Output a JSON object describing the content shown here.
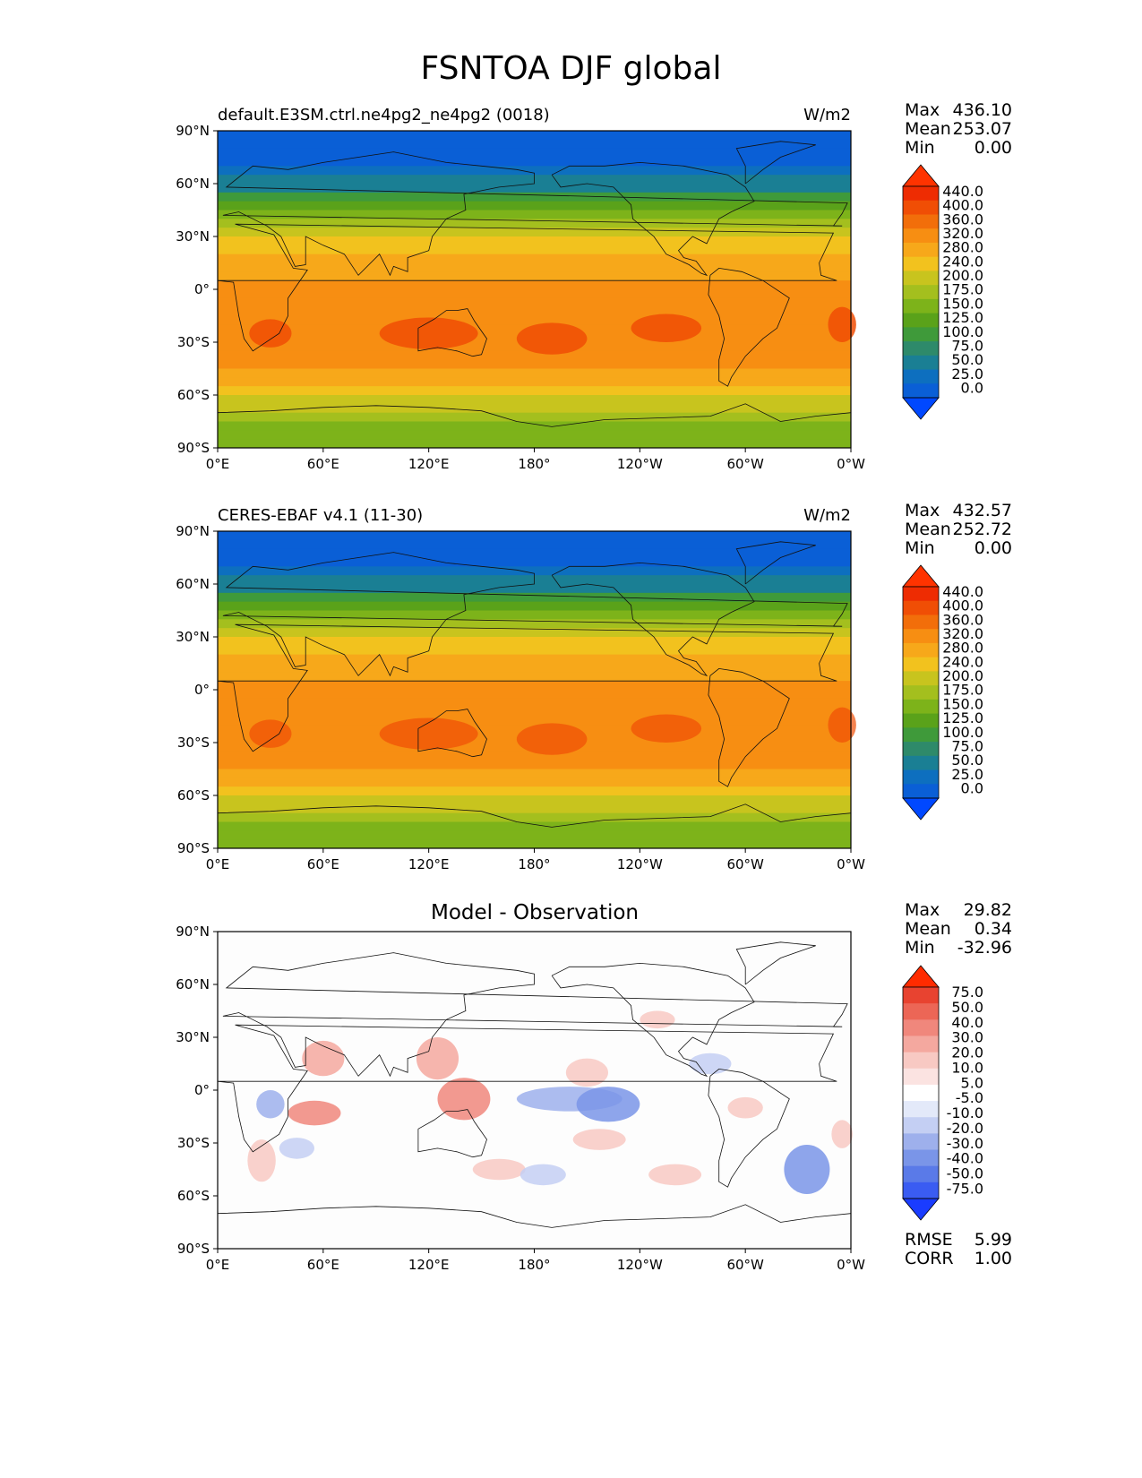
{
  "figure": {
    "title": "FSNTOA DJF global"
  },
  "axes": {
    "lat_ticks": [
      "90°N",
      "60°N",
      "30°N",
      "0°",
      "30°S",
      "60°S",
      "90°S"
    ],
    "lon_ticks": [
      "0°E",
      "60°E",
      "120°E",
      "180°",
      "120°W",
      "60°W",
      "0°W"
    ]
  },
  "panels": [
    {
      "title": "default.E3SM.ctrl.ne4pg2_ne4pg2 (0018)",
      "units": "W/m2",
      "stats": {
        "max_label": "Max",
        "max": "436.10",
        "mean_label": "Mean",
        "mean": "253.07",
        "min_label": "Min",
        "min": "0.00"
      },
      "colorbar": {
        "levels": [
          "440.0",
          "400.0",
          "360.0",
          "320.0",
          "280.0",
          "240.0",
          "200.0",
          "175.0",
          "150.0",
          "125.0",
          "100.0",
          "75.0",
          "50.0",
          "25.0",
          "0.0"
        ]
      }
    },
    {
      "title": "CERES-EBAF v4.1 (11-30)",
      "units": "W/m2",
      "stats": {
        "max_label": "Max",
        "max": "432.57",
        "mean_label": "Mean",
        "mean": "252.72",
        "min_label": "Min",
        "min": "0.00"
      },
      "colorbar": {
        "levels": [
          "440.0",
          "400.0",
          "360.0",
          "320.0",
          "280.0",
          "240.0",
          "200.0",
          "175.0",
          "150.0",
          "125.0",
          "100.0",
          "75.0",
          "50.0",
          "25.0",
          "0.0"
        ]
      }
    },
    {
      "title": "Model - Observation",
      "stats": {
        "max_label": "Max",
        "max": "29.82",
        "mean_label": "Mean",
        "mean": "0.34",
        "min_label": "Min",
        "min": "-32.96"
      },
      "colorbar": {
        "levels": [
          "75.0",
          "50.0",
          "40.0",
          "30.0",
          "20.0",
          "10.0",
          "5.0",
          "-5.0",
          "-10.0",
          "-20.0",
          "-30.0",
          "-40.0",
          "-50.0",
          "-75.0"
        ]
      },
      "metrics": {
        "rmse_label": "RMSE",
        "rmse": "5.99",
        "corr_label": "CORR",
        "corr": "1.00"
      }
    }
  ],
  "colors": {
    "field_palette": [
      "#0048ff",
      "#0a5fd6",
      "#0d6fbf",
      "#1a7f94",
      "#2e8a6a",
      "#3f9a3a",
      "#5aa21a",
      "#7db31a",
      "#a4bf1e",
      "#c8c41e",
      "#f2c21e",
      "#f7a81a",
      "#f78e12",
      "#f26e0a",
      "#f04e05",
      "#ee2c02",
      "#ff3300"
    ],
    "diff_palette": [
      "#1a3cff",
      "#3a5cf2",
      "#5a7ae8",
      "#7a95e8",
      "#9eb0ec",
      "#c4cff3",
      "#e3e9f9",
      "#ffffff",
      "#fbe3e1",
      "#f8c9c3",
      "#f4a89f",
      "#f0877c",
      "#ec6656",
      "#e84330",
      "#ff2b00"
    ]
  },
  "map_data": {
    "variable": "FSNTOA",
    "season": "DJF",
    "region": "global",
    "field_zonal_profile": [
      {
        "lat": 90,
        "value": 0
      },
      {
        "lat": 75,
        "value": 10
      },
      {
        "lat": 60,
        "value": 60
      },
      {
        "lat": 45,
        "value": 150
      },
      {
        "lat": 30,
        "value": 240
      },
      {
        "lat": 15,
        "value": 290
      },
      {
        "lat": 0,
        "value": 330
      },
      {
        "lat": -15,
        "value": 350
      },
      {
        "lat": -30,
        "value": 360
      },
      {
        "lat": -45,
        "value": 320
      },
      {
        "lat": -60,
        "value": 250
      },
      {
        "lat": -75,
        "value": 180
      },
      {
        "lat": -90,
        "value": 150
      }
    ]
  }
}
